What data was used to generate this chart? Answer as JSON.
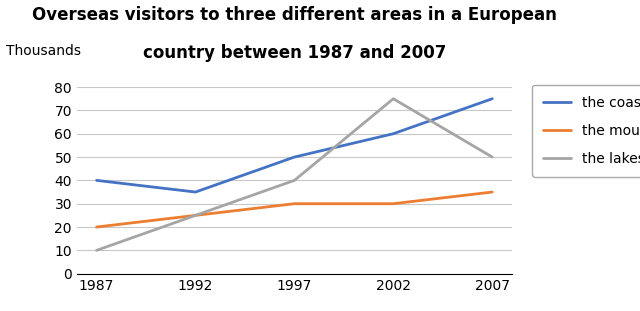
{
  "title_line1": "Overseas visitors to three different areas in a European",
  "title_line2": "country between 1987 and 2007",
  "ylabel": "Thousands",
  "years": [
    1987,
    1992,
    1997,
    2002,
    2007
  ],
  "series": [
    {
      "label": "the coast",
      "values": [
        40,
        35,
        50,
        60,
        75
      ],
      "color": "#4472C4",
      "linewidth": 2.0
    },
    {
      "label": "the mountains",
      "values": [
        20,
        25,
        30,
        30,
        35
      ],
      "color": "#ED7D31",
      "linewidth": 2.0
    },
    {
      "label": "the lakes",
      "values": [
        10,
        25,
        40,
        75,
        50
      ],
      "color": "#A5A5A5",
      "linewidth": 2.0
    }
  ],
  "ylim": [
    0,
    80
  ],
  "yticks": [
    0,
    10,
    20,
    30,
    40,
    50,
    60,
    70,
    80
  ],
  "background_color": "#FFFFFF",
  "grid_color": "#C8C8C8",
  "title_fontsize": 12,
  "axis_fontsize": 10,
  "legend_fontsize": 10
}
